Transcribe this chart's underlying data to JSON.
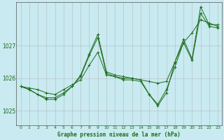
{
  "title": "Graphe pression niveau de la mer (hPa)",
  "background_color": "#c8eaf0",
  "line_color": "#1a6b1a",
  "grid_color_h": "#aaaaaa",
  "grid_color_v": "#aaaaaa",
  "xlim": [
    -0.5,
    23.5
  ],
  "ylim": [
    1024.55,
    1028.35
  ],
  "yticks": [
    1025,
    1026,
    1027
  ],
  "xticks": [
    0,
    1,
    2,
    3,
    4,
    5,
    6,
    7,
    8,
    9,
    10,
    11,
    12,
    13,
    14,
    15,
    16,
    17,
    18,
    19,
    20,
    21,
    22,
    23
  ],
  "series": [
    [
      1025.75,
      1025.7,
      1025.65,
      1025.55,
      1025.5,
      1025.65,
      1025.8,
      1025.95,
      1026.4,
      1026.8,
      1026.1,
      1026.05,
      1026.0,
      1026.0,
      1025.95,
      1025.9,
      1025.85,
      1025.9,
      1026.5,
      1027.1,
      1027.4,
      1027.8,
      1027.7,
      1027.6
    ],
    [
      1025.75,
      1025.65,
      1025.5,
      1025.4,
      1025.4,
      1025.55,
      1025.75,
      1026.1,
      1026.75,
      1027.35,
      1026.2,
      1026.1,
      1026.05,
      1026.0,
      1025.95,
      1025.5,
      1025.15,
      1025.55,
      1026.5,
      1027.2,
      1026.6,
      1028.2,
      1027.65,
      1027.65
    ],
    [
      1025.75,
      1025.65,
      1025.5,
      1025.35,
      1025.35,
      1025.5,
      1025.75,
      1026.05,
      1026.7,
      1027.25,
      1026.15,
      1026.05,
      1025.95,
      1025.95,
      1025.9,
      1025.5,
      1025.2,
      1025.65,
      1026.35,
      1027.1,
      1026.55,
      1028.0,
      1027.6,
      1027.55
    ]
  ]
}
